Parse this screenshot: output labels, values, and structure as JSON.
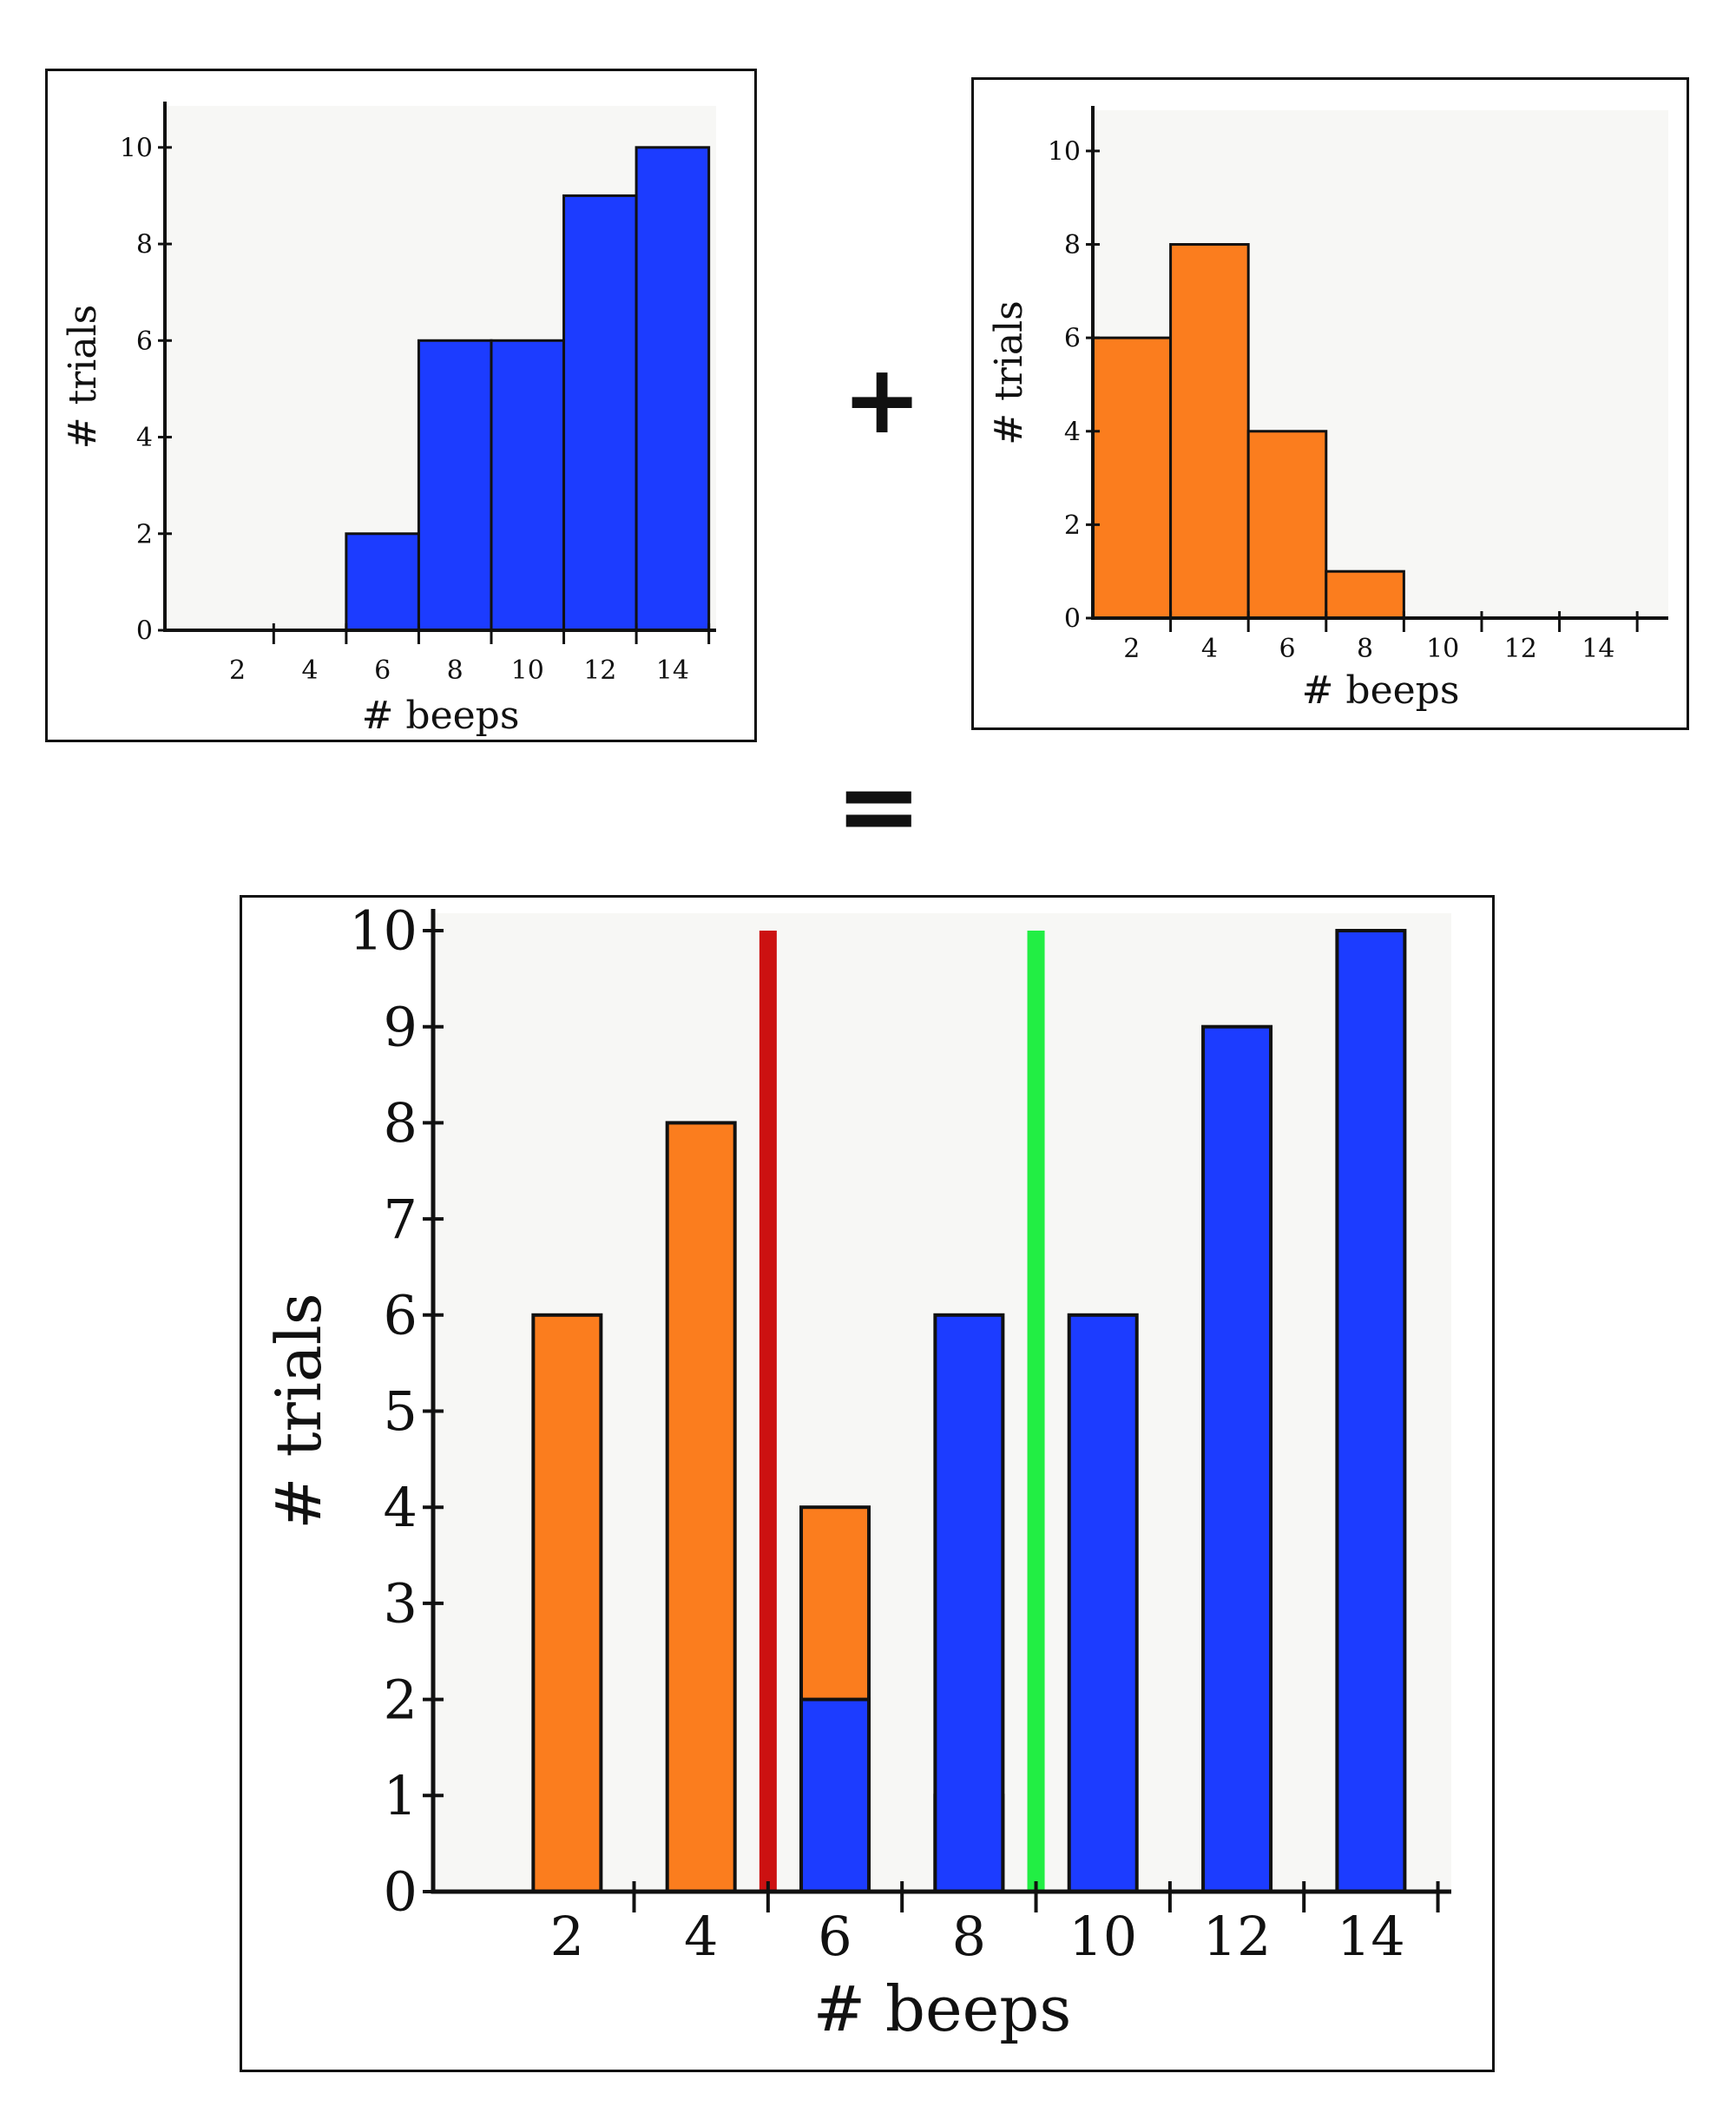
{
  "operators": {
    "plus": "+",
    "equals": "="
  },
  "colors": {
    "blue": "#1c3cff",
    "orange": "#fb7d1e",
    "red_line": "#cc1111",
    "green_line": "#22ee44",
    "plot_bg": "#f7f7f5",
    "ink": "#111111"
  },
  "chart_data": [
    {
      "id": "top-left",
      "type": "bar",
      "xlabel": "# beeps",
      "ylabel": "# trials",
      "xlim": [
        0,
        15.2
      ],
      "ylim": [
        0,
        10.5
      ],
      "xticks": [
        2,
        4,
        6,
        8,
        10,
        12,
        14
      ],
      "yticks": [
        0,
        2,
        4,
        6,
        8,
        10
      ],
      "series": [
        {
          "color": "blue",
          "bins": [
            {
              "x0": 5,
              "x1": 7,
              "value": 2
            },
            {
              "x0": 7,
              "x1": 9,
              "value": 6
            },
            {
              "x0": 9,
              "x1": 11,
              "value": 6
            },
            {
              "x0": 11,
              "x1": 13,
              "value": 9
            },
            {
              "x0": 13,
              "x1": 15,
              "value": 10
            }
          ]
        }
      ]
    },
    {
      "id": "top-right",
      "type": "bar",
      "xlabel": "# beeps",
      "ylabel": "# trials",
      "xlim": [
        1,
        15.8
      ],
      "ylim": [
        0,
        10.5
      ],
      "xticks": [
        2,
        4,
        6,
        8,
        10,
        12,
        14
      ],
      "yticks": [
        0,
        2,
        4,
        6,
        8,
        10
      ],
      "series": [
        {
          "color": "orange",
          "bins": [
            {
              "x0": 1,
              "x1": 3,
              "value": 6
            },
            {
              "x0": 3,
              "x1": 5,
              "value": 8
            },
            {
              "x0": 5,
              "x1": 7,
              "value": 4
            },
            {
              "x0": 7,
              "x1": 9,
              "value": 1
            }
          ]
        }
      ]
    },
    {
      "id": "bottom",
      "type": "bar",
      "xlabel": "# beeps",
      "ylabel": "# trials",
      "xlim": [
        0,
        15.2
      ],
      "ylim": [
        0,
        10
      ],
      "xticks": [
        2,
        4,
        6,
        8,
        10,
        12,
        14
      ],
      "yticks": [
        0,
        1,
        2,
        3,
        4,
        5,
        6,
        7,
        8,
        9,
        10
      ],
      "series": [
        {
          "color": "orange",
          "bars": [
            {
              "x": 2,
              "value": 6
            },
            {
              "x": 4,
              "value": 8
            },
            {
              "x": 6,
              "value": 4
            },
            {
              "x": 8,
              "value": 1
            }
          ]
        },
        {
          "color": "blue",
          "bars": [
            {
              "x": 6,
              "value": 2
            },
            {
              "x": 8,
              "value": 6
            },
            {
              "x": 10,
              "value": 6
            },
            {
              "x": 12,
              "value": 9
            },
            {
              "x": 14,
              "value": 10
            }
          ]
        }
      ],
      "vlines": [
        {
          "x": 5,
          "color": "red_line"
        },
        {
          "x": 9,
          "color": "green_line"
        }
      ]
    }
  ]
}
